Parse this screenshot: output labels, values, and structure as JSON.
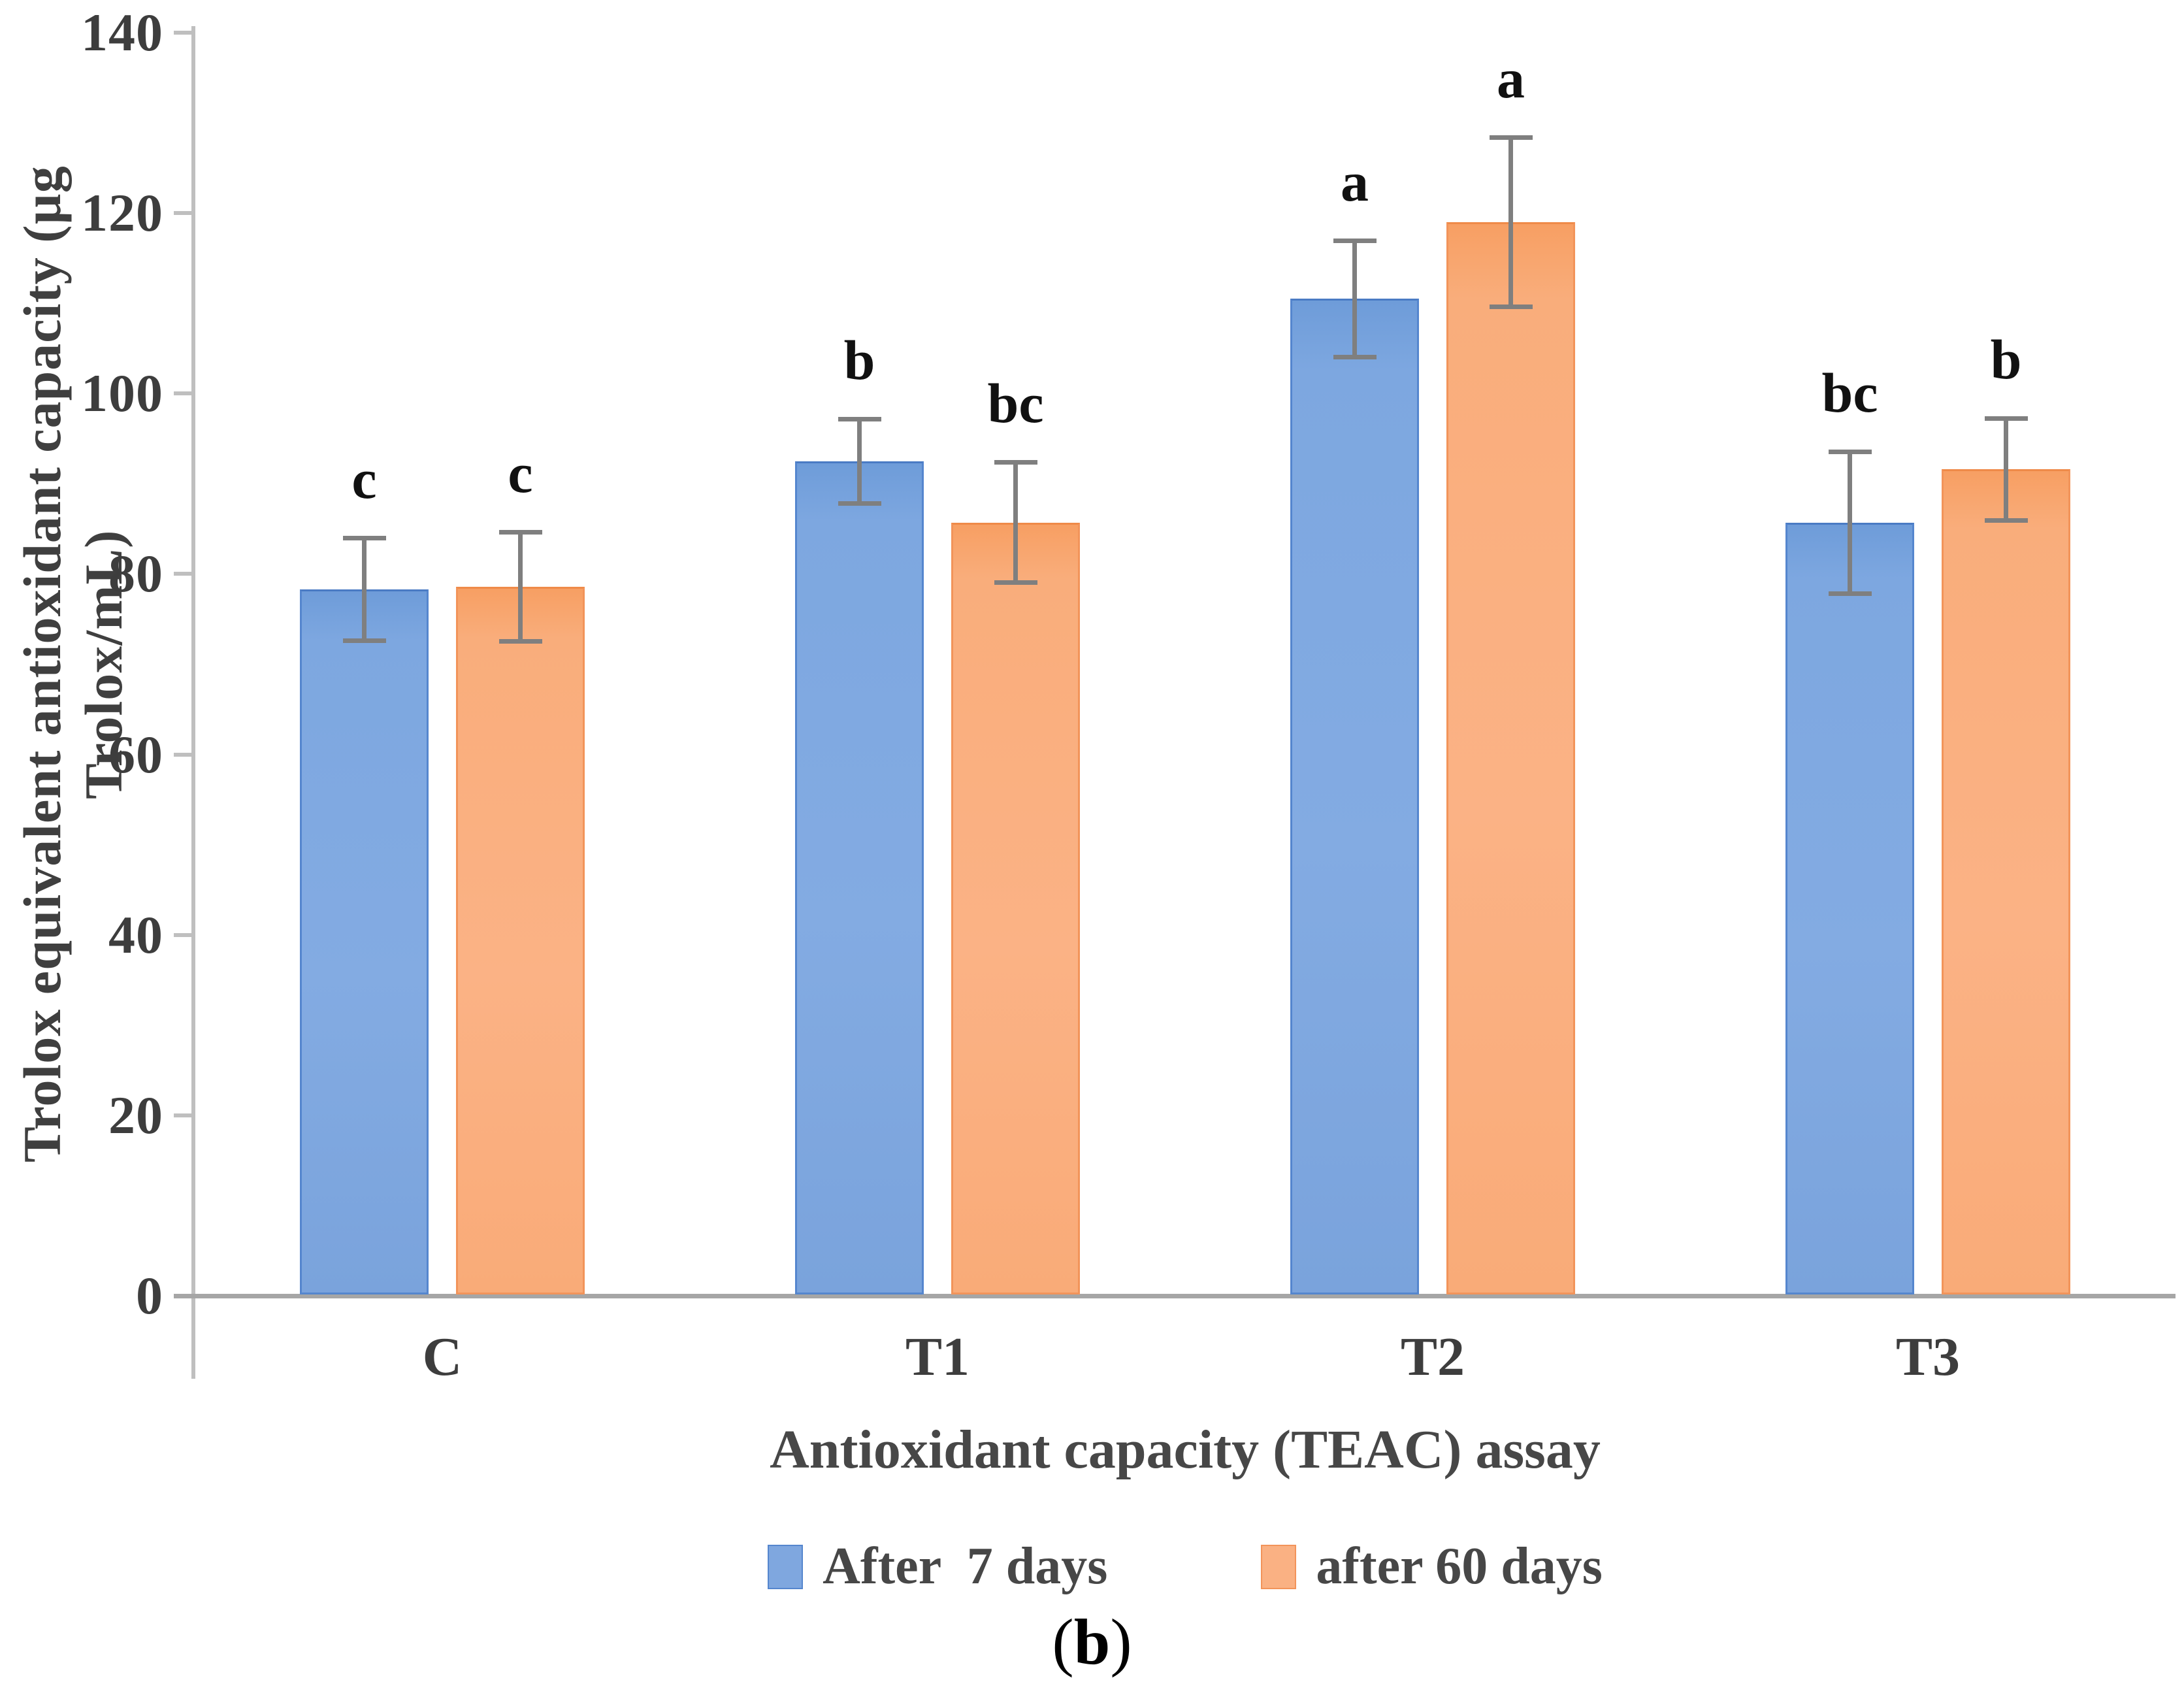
{
  "figure": {
    "caption": {
      "open": "(",
      "letter": "b",
      "close": ")"
    }
  },
  "chart_data": {
    "type": "bar",
    "title": "",
    "xlabel": "Antioxidant capacity (TEAC) assay",
    "ylabel": "Trolox equivalent antioxidant capacity (µg Trolox/mL)",
    "categories": [
      "C",
      "T1",
      "T2",
      "T3"
    ],
    "ylim": [
      0,
      140
    ],
    "yticks": [
      0,
      20,
      40,
      60,
      80,
      100,
      120,
      140
    ],
    "grid": false,
    "legend_position": "bottom",
    "series": [
      {
        "name": "After  7 days",
        "color": "#7FA7DF",
        "border_color": "#5586CE",
        "values": [
          78.3,
          92.5,
          110.5,
          85.7
        ],
        "errors": [
          5.7,
          4.7,
          6.5,
          7.9
        ],
        "letters": [
          "c",
          "b",
          "a",
          "bc"
        ]
      },
      {
        "name": "after 60 days",
        "color": "#FAB183",
        "border_color": "#F2945A",
        "values": [
          78.6,
          85.7,
          119.0,
          91.6
        ],
        "errors": [
          6.1,
          6.7,
          9.4,
          5.7
        ],
        "letters": [
          "c",
          "bc",
          "a",
          "b"
        ]
      }
    ],
    "error_bar_color": "#7F7F7F",
    "axis_line_color": "#BFBFBF",
    "baseline_color": "#A6A6A6",
    "text_color": "#3D3D3D"
  }
}
